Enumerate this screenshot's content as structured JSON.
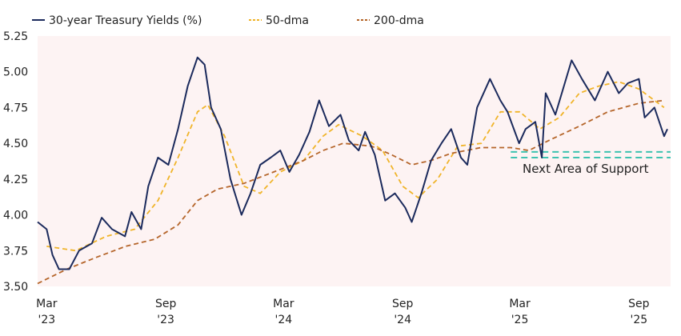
{
  "chart_data": {
    "type": "line",
    "title": "",
    "xlabel": "",
    "ylabel": "",
    "ylim": [
      3.5,
      5.25
    ],
    "xlim": [
      "2023-02-15",
      "2025-10-20"
    ],
    "yticks": [
      "3.50",
      "3.75",
      "4.00",
      "4.25",
      "4.50",
      "4.75",
      "5.00",
      "5.25"
    ],
    "xticks": [
      {
        "date": "2023-03-01",
        "line1": "Mar",
        "line2": "'23"
      },
      {
        "date": "2023-09-01",
        "line1": "Sep",
        "line2": "'23"
      },
      {
        "date": "2024-03-01",
        "line1": "Mar",
        "line2": "'24"
      },
      {
        "date": "2024-09-01",
        "line1": "Sep",
        "line2": "'24"
      },
      {
        "date": "2025-03-01",
        "line1": "Mar",
        "line2": "'25"
      },
      {
        "date": "2025-09-01",
        "line1": "Sep",
        "line2": "'25"
      }
    ],
    "grid": false,
    "legend_position": "top",
    "background_color": "#fdf3f3",
    "series": [
      {
        "name": "30-year Treasury Yields (%)",
        "color": "#1b2a5c",
        "style": "solid",
        "x": [
          "2023-02-15",
          "2023-03-01",
          "2023-03-10",
          "2023-03-20",
          "2023-04-05",
          "2023-04-20",
          "2023-05-10",
          "2023-05-25",
          "2023-06-10",
          "2023-06-30",
          "2023-07-10",
          "2023-07-25",
          "2023-08-05",
          "2023-08-20",
          "2023-09-05",
          "2023-09-20",
          "2023-10-05",
          "2023-10-20",
          "2023-10-31",
          "2023-11-10",
          "2023-11-25",
          "2023-12-10",
          "2023-12-27",
          "2024-01-10",
          "2024-01-25",
          "2024-02-10",
          "2024-02-25",
          "2024-03-10",
          "2024-03-25",
          "2024-04-10",
          "2024-04-25",
          "2024-05-10",
          "2024-05-28",
          "2024-06-10",
          "2024-06-25",
          "2024-07-05",
          "2024-07-20",
          "2024-08-05",
          "2024-08-20",
          "2024-09-05",
          "2024-09-15",
          "2024-09-30",
          "2024-10-15",
          "2024-10-31",
          "2024-11-15",
          "2024-11-30",
          "2024-12-10",
          "2024-12-25",
          "2025-01-14",
          "2025-01-30",
          "2025-02-10",
          "2025-02-28",
          "2025-03-10",
          "2025-03-25",
          "2025-04-04",
          "2025-04-10",
          "2025-04-25",
          "2025-05-20",
          "2025-06-05",
          "2025-06-25",
          "2025-07-15",
          "2025-08-01",
          "2025-08-15",
          "2025-09-01",
          "2025-09-10",
          "2025-09-25",
          "2025-10-10",
          "2025-10-15"
        ],
        "y": [
          3.95,
          3.9,
          3.72,
          3.62,
          3.62,
          3.75,
          3.8,
          3.98,
          3.9,
          3.85,
          4.02,
          3.9,
          4.2,
          4.4,
          4.35,
          4.6,
          4.9,
          5.1,
          5.05,
          4.75,
          4.6,
          4.25,
          4.0,
          4.15,
          4.35,
          4.4,
          4.45,
          4.3,
          4.42,
          4.58,
          4.8,
          4.62,
          4.7,
          4.52,
          4.45,
          4.58,
          4.42,
          4.1,
          4.15,
          4.05,
          3.95,
          4.15,
          4.38,
          4.5,
          4.6,
          4.4,
          4.35,
          4.75,
          4.95,
          4.8,
          4.72,
          4.5,
          4.6,
          4.65,
          4.4,
          4.85,
          4.7,
          5.08,
          4.95,
          4.8,
          5.0,
          4.85,
          4.92,
          4.95,
          4.68,
          4.75,
          4.55,
          4.6
        ]
      },
      {
        "name": "50-dma",
        "color": "#f0b429",
        "style": "dashed",
        "x": [
          "2023-03-01",
          "2023-04-15",
          "2023-06-01",
          "2023-07-15",
          "2023-08-20",
          "2023-09-20",
          "2023-10-20",
          "2023-11-05",
          "2023-12-01",
          "2023-12-31",
          "2024-01-25",
          "2024-02-25",
          "2024-04-01",
          "2024-05-01",
          "2024-05-25",
          "2024-07-01",
          "2024-08-01",
          "2024-09-01",
          "2024-09-25",
          "2024-10-25",
          "2024-11-25",
          "2025-01-01",
          "2025-01-30",
          "2025-03-01",
          "2025-04-01",
          "2025-05-01",
          "2025-06-01",
          "2025-07-01",
          "2025-08-01",
          "2025-09-01",
          "2025-10-10"
        ],
        "y": [
          3.78,
          3.75,
          3.85,
          3.9,
          4.1,
          4.4,
          4.72,
          4.77,
          4.55,
          4.2,
          4.15,
          4.3,
          4.38,
          4.55,
          4.63,
          4.55,
          4.45,
          4.2,
          4.12,
          4.25,
          4.48,
          4.5,
          4.72,
          4.72,
          4.6,
          4.68,
          4.85,
          4.9,
          4.93,
          4.88,
          4.75
        ]
      },
      {
        "name": "200-dma",
        "color": "#b5652a",
        "style": "dashed",
        "x": [
          "2023-02-15",
          "2023-04-01",
          "2023-05-15",
          "2023-07-01",
          "2023-08-15",
          "2023-09-20",
          "2023-10-20",
          "2023-11-20",
          "2023-12-31",
          "2024-02-15",
          "2024-04-01",
          "2024-05-01",
          "2024-06-01",
          "2024-07-15",
          "2024-08-15",
          "2024-09-15",
          "2024-10-15",
          "2024-11-15",
          "2024-12-31",
          "2025-02-15",
          "2025-03-15",
          "2025-04-15",
          "2025-06-01",
          "2025-07-15",
          "2025-09-01",
          "2025-10-10"
        ],
        "y": [
          3.52,
          3.62,
          3.7,
          3.78,
          3.83,
          3.93,
          4.1,
          4.18,
          4.22,
          4.3,
          4.38,
          4.45,
          4.5,
          4.48,
          4.42,
          4.35,
          4.38,
          4.43,
          4.47,
          4.47,
          4.45,
          4.52,
          4.62,
          4.72,
          4.78,
          4.8
        ]
      }
    ],
    "annotations": [
      {
        "text": "Next Area of Support",
        "support_levels": [
          4.44,
          4.4
        ],
        "from": "2025-02-15",
        "color": "#3cc3b0"
      }
    ]
  }
}
